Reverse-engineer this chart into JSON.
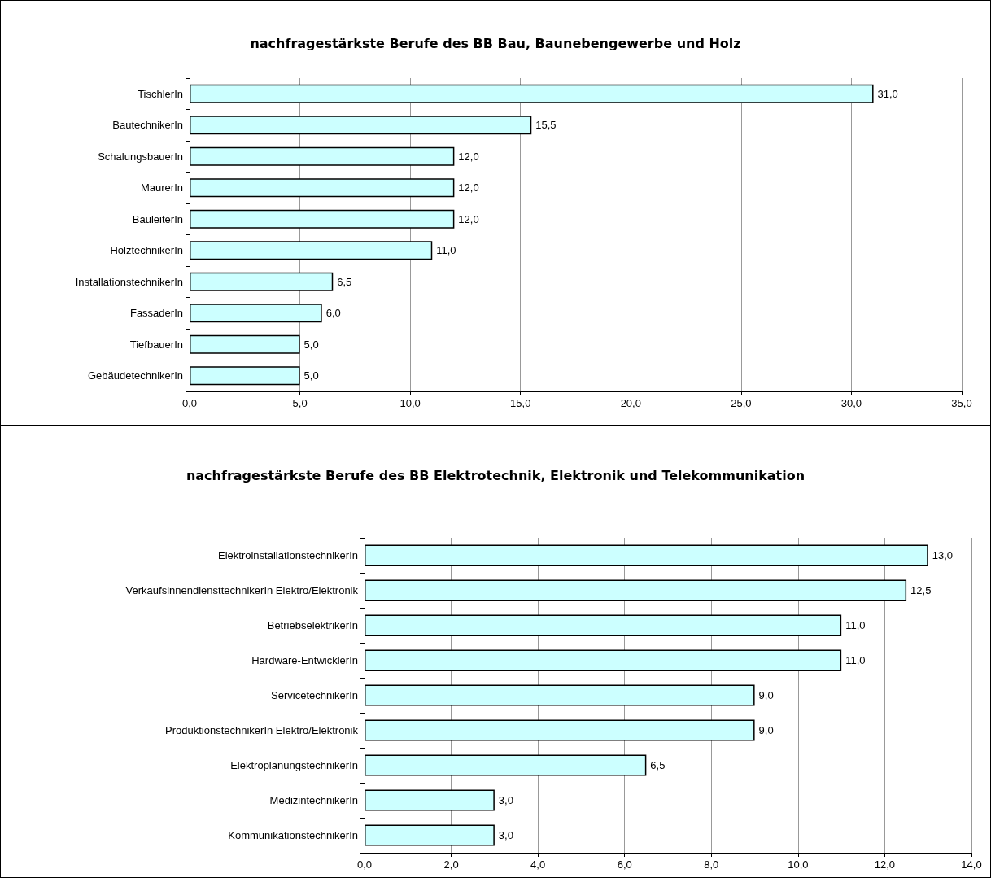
{
  "chart_data": [
    {
      "type": "bar",
      "orientation": "horizontal",
      "title": "nachfragestärkste Berufe des BB Bau, Baunebengewerbe und Holz",
      "categories": [
        "TischlerIn",
        "BautechnikerIn",
        "SchalungsbauerIn",
        "MaurerIn",
        "BauleiterIn",
        "HolztechnikerIn",
        "InstallationstechnikerIn",
        "FassaderIn",
        "TiefbauerIn",
        "GebäudetechnikerIn"
      ],
      "values": [
        31.0,
        15.5,
        12.0,
        12.0,
        12.0,
        11.0,
        6.5,
        6.0,
        5.0,
        5.0
      ],
      "value_labels": [
        "31,0",
        "15,5",
        "12,0",
        "12,0",
        "12,0",
        "11,0",
        "6,5",
        "6,0",
        "5,0",
        "5,0"
      ],
      "color": "#ccffff",
      "xlim": [
        0,
        35
      ],
      "xticks": [
        {
          "value": 0,
          "label": "0,0"
        },
        {
          "value": 5,
          "label": "5,0"
        },
        {
          "value": 10,
          "label": "10,0"
        },
        {
          "value": 15,
          "label": "15,0"
        },
        {
          "value": 20,
          "label": "20,0"
        },
        {
          "value": 25,
          "label": "25,0"
        },
        {
          "value": 30,
          "label": "30,0"
        },
        {
          "value": 35,
          "label": "35,0"
        }
      ],
      "grid": "x"
    },
    {
      "type": "bar",
      "orientation": "horizontal",
      "title": "nachfragestärkste Berufe des BB Elektrotechnik, Elektronik und Telekommunikation",
      "categories": [
        "ElektroinstallationstechnikerIn",
        "VerkaufsinnendiensttechnikerIn Elektro/Elektronik",
        "BetriebselektrikerIn",
        "Hardware-EntwicklerIn",
        "ServicetechnikerIn",
        "ProduktionstechnikerIn Elektro/Elektronik",
        "ElektroplanungstechnikerIn",
        "MedizintechnikerIn",
        "KommunikationstechnikerIn"
      ],
      "values": [
        13.0,
        12.5,
        11.0,
        11.0,
        9.0,
        9.0,
        6.5,
        3.0,
        3.0
      ],
      "value_labels": [
        "13,0",
        "12,5",
        "11,0",
        "11,0",
        "9,0",
        "9,0",
        "6,5",
        "3,0",
        "3,0"
      ],
      "color": "#ccffff",
      "xlim": [
        0,
        14
      ],
      "xticks": [
        {
          "value": 0,
          "label": "0,0"
        },
        {
          "value": 2,
          "label": "2,0"
        },
        {
          "value": 4,
          "label": "4,0"
        },
        {
          "value": 6,
          "label": "6,0"
        },
        {
          "value": 8,
          "label": "8,0"
        },
        {
          "value": 10,
          "label": "10,0"
        },
        {
          "value": 12,
          "label": "12,0"
        },
        {
          "value": 14,
          "label": "14,0"
        }
      ],
      "grid": "x"
    }
  ]
}
